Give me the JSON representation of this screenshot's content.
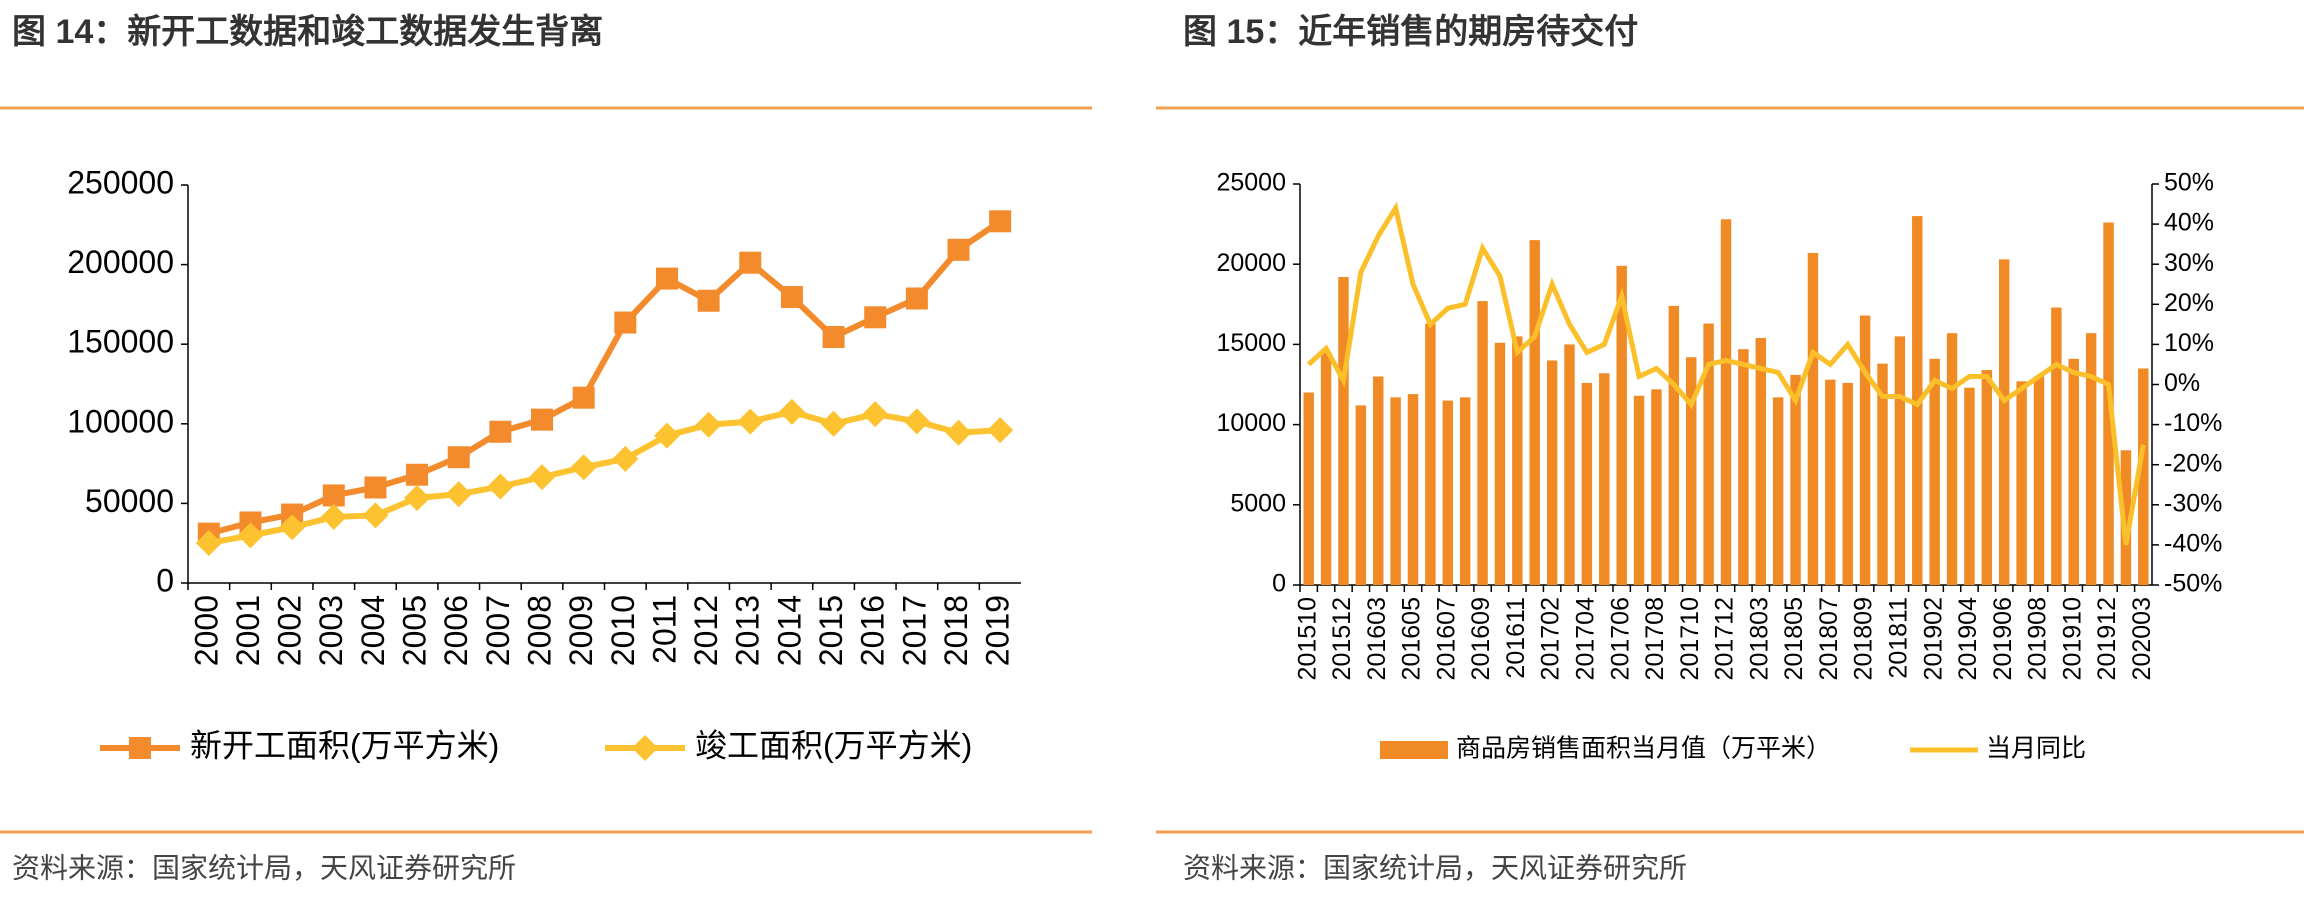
{
  "chart_data": [
    {
      "type": "line",
      "title": "图 14：新开工数据和竣工数据发生背离",
      "source": "资料来源：国家统计局，天风证券研究所",
      "categories": [
        "2000",
        "2001",
        "2002",
        "2003",
        "2004",
        "2005",
        "2006",
        "2007",
        "2008",
        "2009",
        "2010",
        "2011",
        "2012",
        "2013",
        "2014",
        "2015",
        "2016",
        "2017",
        "2018",
        "2019"
      ],
      "series": [
        {
          "name": "新开工面积(万平方米)",
          "color": "#f38a2c",
          "marker": "square",
          "values": [
            31000,
            38000,
            43000,
            55000,
            60000,
            68000,
            79000,
            95000,
            102600,
            116400,
            163600,
            191200,
            177300,
            201200,
            179600,
            154500,
            166900,
            178700,
            209300,
            227200
          ]
        },
        {
          "name": "竣工面积(万平方米)",
          "color": "#fcc22f",
          "marker": "diamond",
          "values": [
            25100,
            29900,
            35000,
            41500,
            42500,
            53400,
            55800,
            60600,
            66500,
            72700,
            78000,
            92600,
            99400,
            101400,
            107500,
            100000,
            106100,
            101500,
            94400,
            96000
          ]
        }
      ],
      "ylim": [
        0,
        250000
      ],
      "yticks": [
        0,
        50000,
        100000,
        150000,
        200000,
        250000
      ]
    },
    {
      "type": "combo",
      "title": "图 15：近年销售的期房待交付",
      "source": "资料来源：国家统计局，天风证券研究所",
      "categories": [
        "201510",
        null,
        "201512",
        null,
        "201603",
        null,
        "201605",
        null,
        "201607",
        null,
        "201609",
        null,
        "201611",
        null,
        "201702",
        null,
        "201704",
        null,
        "201706",
        null,
        "201708",
        null,
        "201710",
        null,
        "201712",
        null,
        "201803",
        null,
        "201805",
        null,
        "201807",
        null,
        "201809",
        null,
        "201811",
        null,
        "201902",
        null,
        "201904",
        null,
        "201906",
        null,
        "201908",
        null,
        "201910",
        null,
        "201912",
        null,
        "202003"
      ],
      "series": [
        {
          "name": "商品房销售面积当月值（万平米）",
          "color": "#f08a24",
          "kind": "bar",
          "values": [
            12000,
            14500,
            19200,
            11200,
            13000,
            11700,
            11900,
            16300,
            11500,
            11700,
            17700,
            15100,
            15500,
            21500,
            14000,
            15000,
            12600,
            13200,
            19900,
            11800,
            12200,
            17400,
            14200,
            16300,
            22800,
            14700,
            15400,
            11700,
            13100,
            20700,
            12800,
            12600,
            16800,
            13800,
            15500,
            23000,
            14100,
            15700,
            12300,
            13400,
            20300,
            12700,
            13000,
            17300,
            14100,
            15700,
            22600,
            8400,
            13500
          ]
        },
        {
          "name": "当月同比",
          "color": "#fbbf2a",
          "kind": "line",
          "axis": "y2",
          "values": [
            5,
            9,
            1,
            28,
            37,
            44,
            25,
            15,
            19,
            20,
            34,
            27,
            8,
            12,
            25,
            15,
            8,
            10,
            22,
            2,
            4,
            0,
            -5,
            5,
            6,
            5,
            4,
            3,
            -4,
            8,
            5,
            10,
            3,
            -3,
            -3,
            -5,
            1,
            -1,
            2,
            2,
            -4,
            -1,
            2,
            5,
            3,
            2,
            0,
            -40,
            -15
          ]
        }
      ],
      "ylim": [
        0,
        25000
      ],
      "yticks": [
        0,
        5000,
        10000,
        15000,
        20000,
        25000
      ],
      "y2lim": [
        -50,
        50
      ],
      "y2ticks": [
        {
          "value": -50,
          "label": "-50%"
        },
        {
          "value": -40,
          "label": "-40%"
        },
        {
          "value": -30,
          "label": "-30%"
        },
        {
          "value": -20,
          "label": "-20%"
        },
        {
          "value": -10,
          "label": "-10%"
        },
        {
          "value": 0,
          "label": "0%"
        },
        {
          "value": 10,
          "label": "10%"
        },
        {
          "value": 20,
          "label": "20%"
        },
        {
          "value": 30,
          "label": "30%"
        },
        {
          "value": 40,
          "label": "40%"
        },
        {
          "value": 50,
          "label": "50%"
        }
      ]
    }
  ]
}
